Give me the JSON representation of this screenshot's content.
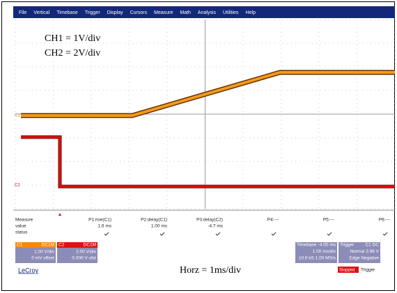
{
  "menu": [
    "File",
    "Vertical",
    "Timebase",
    "Trigger",
    "Display",
    "Cursors",
    "Measure",
    "Math",
    "Analysis",
    "Utilities",
    "Help"
  ],
  "annotations": {
    "ch1": "CH1 = 1V/div",
    "ch2": "CH2 = 2V/div",
    "horz": "Horz = 1ms/div"
  },
  "trace_labels": {
    "c1": "C1",
    "c2": "C2"
  },
  "measure": {
    "row_labels": [
      "Measure",
      "value",
      "status"
    ],
    "columns": [
      {
        "name": "P1:rise(C1)",
        "value": "1.6 ms"
      },
      {
        "name": "P2:delay(C1)",
        "value": "1.00 ms"
      },
      {
        "name": "P3:delay(C2)",
        "value": "-4.7 ms"
      },
      {
        "name": "P4:---",
        "value": ""
      },
      {
        "name": "P5:---",
        "value": ""
      },
      {
        "name": "P6:---",
        "value": ""
      }
    ]
  },
  "channels": [
    {
      "label": "C1",
      "coupling": "DC1M",
      "scale": "1.00 V/div",
      "offset": "0 mV offset"
    },
    {
      "label": "C2",
      "coupling": "DC1M",
      "scale": "2.00 V/div",
      "offset": "0.000 V ofst"
    }
  ],
  "timebase": {
    "label": "Timebase",
    "delay": "-4.00 ms",
    "scale": "1.00 ms/div",
    "rate": "10.0 kS 1.00 MS/s"
  },
  "trigger": {
    "label": "Trigger",
    "source": "C1 DC",
    "mode": "Normal 2.96 V",
    "type": "Edge Negative"
  },
  "brand": "LeCroy",
  "status": {
    "state": "Stopped",
    "text": "Trigger"
  }
}
